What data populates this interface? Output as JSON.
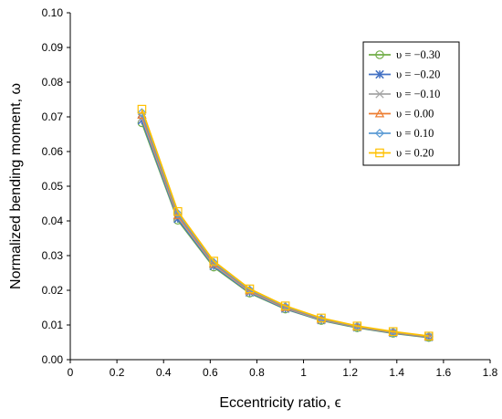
{
  "chart_data": {
    "type": "line",
    "title": "",
    "xlabel": "Eccentricity ratio, ϵ",
    "ylabel": "Normalized bending moment, ω",
    "xlim": [
      0,
      1.8
    ],
    "ylim": [
      0,
      0.1
    ],
    "x_ticks": [
      "0",
      "0.2",
      "0.4",
      "0.6",
      "0.8",
      "1",
      "1.2",
      "1.4",
      "1.6",
      "1.8"
    ],
    "y_ticks": [
      "0.00",
      "0.01",
      "0.02",
      "0.03",
      "0.04",
      "0.05",
      "0.06",
      "0.07",
      "0.08",
      "0.09",
      "0.10"
    ],
    "grid": false,
    "legend_position": "top-right",
    "x": [
      0.307,
      0.461,
      0.615,
      0.769,
      0.922,
      1.076,
      1.23,
      1.384,
      1.537
    ],
    "series": [
      {
        "name": "υ = −0.30",
        "color": "#70AD47",
        "marker": "circle",
        "values": [
          0.0683,
          0.0402,
          0.0267,
          0.0192,
          0.0146,
          0.0113,
          0.0092,
          0.0076,
          0.0064
        ]
      },
      {
        "name": "υ = −0.20",
        "color": "#4472C4",
        "marker": "asterisk",
        "values": [
          0.069,
          0.0406,
          0.027,
          0.0194,
          0.0147,
          0.0114,
          0.0093,
          0.0077,
          0.0065
        ]
      },
      {
        "name": "υ = −0.10",
        "color": "#A5A5A5",
        "marker": "x",
        "values": [
          0.0697,
          0.0411,
          0.0273,
          0.0196,
          0.0149,
          0.0115,
          0.0094,
          0.0078,
          0.0066
        ]
      },
      {
        "name": "υ = 0.00",
        "color": "#ED7D31",
        "marker": "triangle",
        "values": [
          0.0705,
          0.0416,
          0.0277,
          0.0199,
          0.0151,
          0.0117,
          0.0095,
          0.0079,
          0.0066
        ]
      },
      {
        "name": "υ = 0.10",
        "color": "#5B9BD5",
        "marker": "diamond",
        "values": [
          0.0712,
          0.0421,
          0.028,
          0.0201,
          0.0153,
          0.0118,
          0.0096,
          0.008,
          0.0067
        ]
      },
      {
        "name": "υ = 0.20",
        "color": "#FFC000",
        "marker": "square",
        "values": [
          0.0722,
          0.0427,
          0.0284,
          0.0204,
          0.0155,
          0.012,
          0.0097,
          0.0081,
          0.0068
        ]
      }
    ]
  }
}
